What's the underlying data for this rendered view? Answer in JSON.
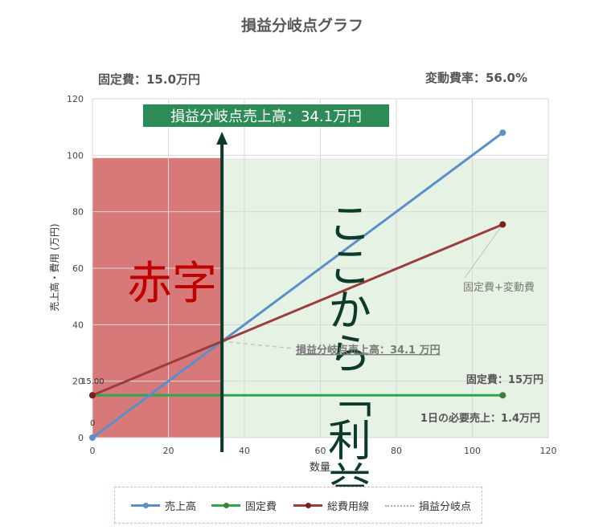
{
  "chart_data": {
    "type": "line",
    "title": "損益分岐点グラフ",
    "xlabel": "数量",
    "ylabel": "売上高・費用 (万円)",
    "xlim": [
      0,
      120
    ],
    "ylim": [
      0,
      120
    ],
    "xticks": [
      0,
      20,
      40,
      60,
      80,
      100,
      120
    ],
    "yticks": [
      0,
      20,
      40,
      60,
      80,
      100,
      120
    ],
    "grid": true,
    "legend_position": "bottom",
    "series": [
      {
        "name": "売上高",
        "color": "#5b8fc9",
        "x": [
          0,
          34.1,
          108
        ],
        "y": [
          0,
          34.1,
          108
        ]
      },
      {
        "name": "固定費",
        "color": "#2ea84f",
        "x": [
          0,
          34.1,
          108
        ],
        "y": [
          15,
          15,
          15
        ]
      },
      {
        "name": "総費用線",
        "color": "#9b3d3d",
        "x": [
          0,
          34.1,
          108
        ],
        "y": [
          15,
          34.1,
          75.5
        ]
      },
      {
        "name": "損益分岐点",
        "color": "#b0b09a",
        "style": "dotted"
      }
    ],
    "annotations": {
      "fixed_cost_header": "固定費：15.0万円",
      "variable_rate_header": "変動費率：56.0%",
      "bep_banner": "損益分岐点売上高：34.1万円",
      "loss_zone": "赤字",
      "profit_zone": "ここから「利益」",
      "total_cost_label": "固定費+変動費",
      "bep_label": "損益分岐点売上高：34.1 万円",
      "fixed_label": "固定費：15万円",
      "daily_sales_label": "1日の必要売上：1.4万円",
      "fixed_point_label": "15.00",
      "origin_label": "0"
    },
    "break_even": {
      "x": 34.1,
      "y": 34.1
    },
    "zones": {
      "loss_color": "#d77979",
      "profit_color": "#e6f2e3",
      "zone_top": 99
    }
  }
}
